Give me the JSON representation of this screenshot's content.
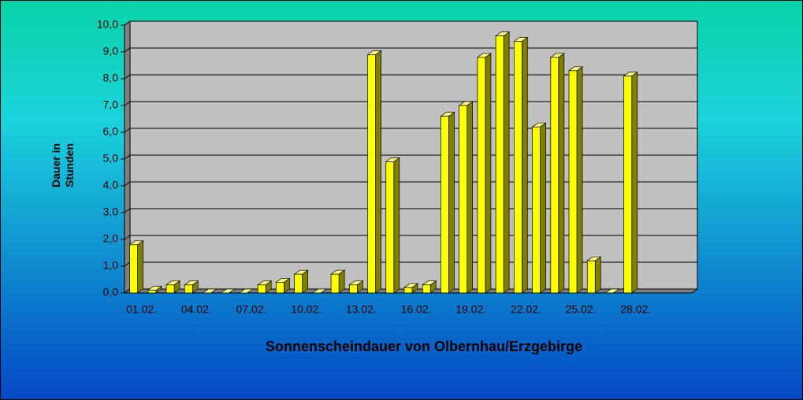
{
  "chart_data": {
    "type": "bar3d",
    "title": "Sonnenscheindauer von Olbernhau/Erzgebirge",
    "y_label": [
      "Dauer in",
      "Stunden"
    ],
    "categories": [
      "01.02.",
      null,
      null,
      "04.02.",
      null,
      null,
      "07.02.",
      null,
      null,
      "10.02.",
      null,
      null,
      "13.02.",
      null,
      null,
      "16.02.",
      null,
      null,
      "19.02.",
      null,
      null,
      "22.02.",
      null,
      null,
      "25.02.",
      null,
      null,
      "28.02.",
      null,
      null,
      null
    ],
    "values": [
      1.8,
      0.1,
      0.3,
      0.3,
      0,
      0,
      0,
      0.3,
      0.4,
      0.7,
      0,
      0.7,
      0.3,
      8.9,
      4.9,
      0.2,
      0.3,
      6.6,
      7.0,
      8.8,
      9.6,
      9.4,
      6.2,
      8.8,
      8.3,
      1.2,
      0,
      8.1,
      null,
      null,
      null
    ],
    "color": "#ffff00",
    "ylim": [
      0,
      10
    ],
    "yticks": [
      {
        "value": 0,
        "label": "0,0"
      },
      {
        "value": 1,
        "label": "1,0"
      },
      {
        "value": 2,
        "label": "2,0"
      },
      {
        "value": 3,
        "label": "3,0"
      },
      {
        "value": 4,
        "label": "4,0"
      },
      {
        "value": 5,
        "label": "5,0"
      },
      {
        "value": 6,
        "label": "6,0"
      },
      {
        "value": 7,
        "label": "7,0"
      },
      {
        "value": 8,
        "label": "8,0"
      },
      {
        "value": 9,
        "label": "9,0"
      },
      {
        "value": 10,
        "label": "10,0"
      }
    ],
    "grid": true
  }
}
